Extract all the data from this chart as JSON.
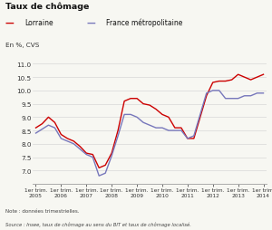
{
  "title": "Taux de chômage",
  "ylabel": "En %, CVS",
  "note": "Note : données trimestrielles.",
  "source": "Source : Insee, taux de chômage au sens du BIT et taux de chômage localisé.",
  "legend_lorraine": "Lorraine",
  "legend_france": "France métropolitaine",
  "color_lorraine": "#cc0000",
  "color_france": "#7777bb",
  "bg_color": "#f7f7f2",
  "grid_color": "#d8d8d8",
  "ylim": [
    6.5,
    11.0
  ],
  "yticks": [
    7.0,
    7.5,
    8.0,
    8.5,
    9.0,
    9.5,
    10.0,
    10.5,
    11.0
  ],
  "x_labels": [
    "1er trim.\n2005",
    "1er trim.\n2006",
    "1er trim.\n2007",
    "1er trim.\n2008",
    "1er trim.\n2009",
    "1er trim.\n2010",
    "1er trim.\n2011",
    "1er trim.\n2012",
    "1er trim.\n2013",
    "1er trim.\n2014"
  ],
  "lorraine": [
    8.6,
    8.75,
    9.0,
    8.8,
    8.35,
    8.2,
    8.1,
    7.9,
    7.65,
    7.6,
    7.1,
    7.2,
    7.65,
    8.5,
    9.6,
    9.7,
    9.7,
    9.5,
    9.45,
    9.3,
    9.1,
    9.0,
    8.6,
    8.6,
    8.2,
    8.2,
    9.0,
    9.8,
    10.3,
    10.35,
    10.35,
    10.4,
    10.6,
    10.5,
    10.4,
    10.5,
    10.6
  ],
  "france": [
    8.4,
    8.55,
    8.7,
    8.6,
    8.2,
    8.1,
    8.0,
    7.8,
    7.6,
    7.5,
    6.8,
    6.9,
    7.55,
    8.3,
    9.1,
    9.1,
    9.0,
    8.8,
    8.7,
    8.6,
    8.6,
    8.5,
    8.5,
    8.5,
    8.2,
    8.3,
    9.1,
    9.9,
    10.0,
    10.0,
    9.7,
    9.7,
    9.7,
    9.8,
    9.8,
    9.9,
    9.9
  ],
  "n_points": 37,
  "x_tick_positions": [
    0,
    4,
    8,
    12,
    16,
    20,
    24,
    28,
    32,
    36
  ]
}
